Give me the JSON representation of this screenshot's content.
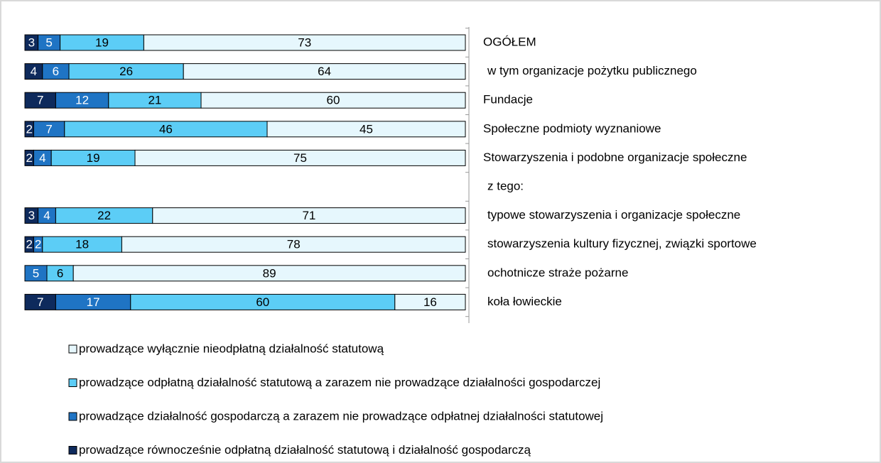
{
  "chart_data": {
    "type": "stacked-bar-horizontal",
    "categories": [
      "OGÓŁEM",
      "w tym organizacje pożytku publicznego",
      "Fundacje",
      "Społeczne podmioty wyznaniowe",
      "Stowarzyszenia i podobne organizacje społeczne",
      "z tego:",
      "typowe stowarzyszenia i organizacje społeczne",
      "stowarzyszenia kultury fizycznej, związki sportowe",
      "ochotnicze straże pożarne",
      "koła łowieckie"
    ],
    "xlim": [
      0,
      100
    ],
    "series": [
      {
        "name": "prowadzące wyłącznie nieodpłatną działalność statutową",
        "color": "#e6f7fd",
        "values": [
          73,
          64,
          60,
          45,
          75,
          null,
          71,
          78,
          89,
          16
        ]
      },
      {
        "name": "prowadzące odpłatną działalność statutową a zarazem nie prowadzące działalności gospodarczej",
        "color": "#5ccdf6",
        "values": [
          19,
          26,
          21,
          46,
          19,
          null,
          22,
          18,
          6,
          60
        ]
      },
      {
        "name": "prowadzące działalność gospodarczą a zarazem nie prowadzące odpłatnej działalności statutowej",
        "color": "#1f74c4",
        "values": [
          5,
          6,
          12,
          7,
          4,
          null,
          4,
          2,
          5,
          17
        ]
      },
      {
        "name": "prowadzące równocześnie odpłatną działalność statutową i działalność gospodarczą",
        "color": "#0e2a5c",
        "values": [
          3,
          4,
          7,
          2,
          2,
          null,
          3,
          2,
          null,
          7
        ]
      }
    ]
  }
}
